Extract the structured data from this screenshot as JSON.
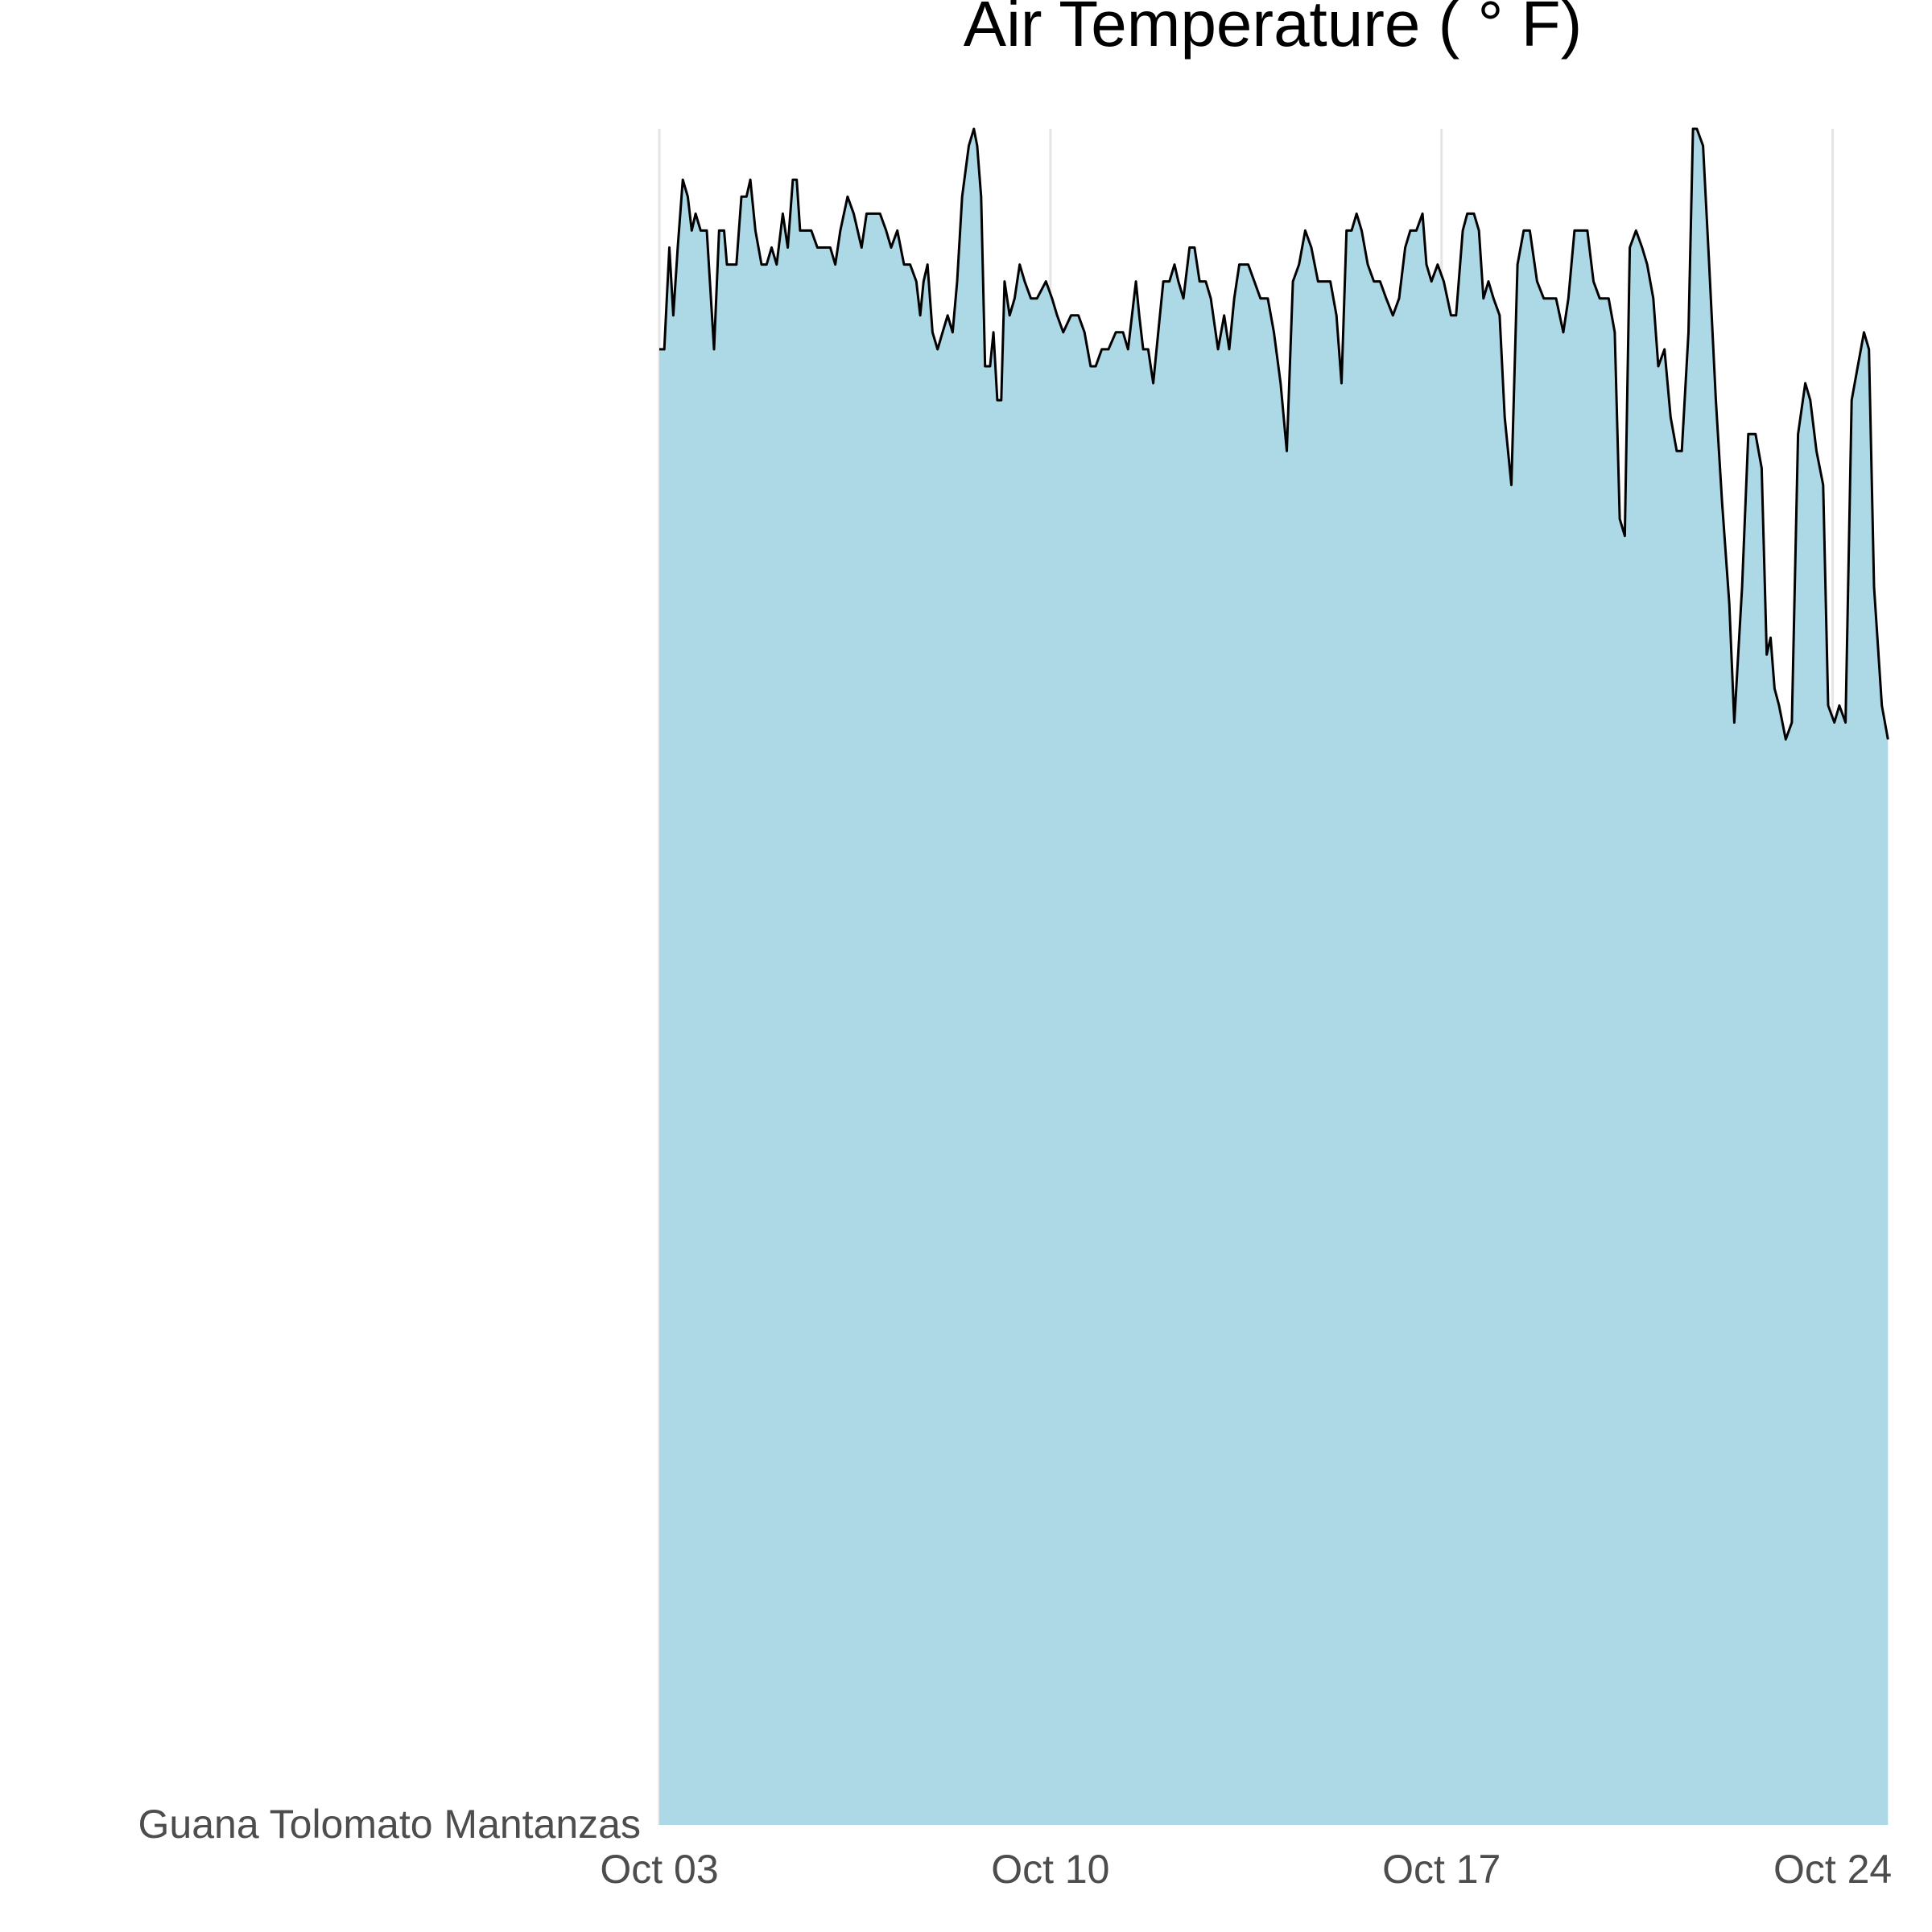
{
  "chart_data": {
    "type": "area",
    "title": "Air Temperature ( ° F)",
    "categories": [
      "Guana Tolomato Mantanzas"
    ],
    "color": "#add8e6",
    "line_color": "#000000",
    "grid": true,
    "xlim": [
      3,
      25
    ],
    "ylim": [
      0,
      1
    ],
    "xticks": [
      {
        "value": 3,
        "label": "Oct 03"
      },
      {
        "value": 10,
        "label": "Oct 10"
      },
      {
        "value": 17,
        "label": "Oct 17"
      },
      {
        "value": 24,
        "label": "Oct 24"
      }
    ],
    "x": [
      3.0,
      3.09,
      3.18,
      3.25,
      3.33,
      3.42,
      3.51,
      3.58,
      3.65,
      3.74,
      3.85,
      3.98,
      4.07,
      4.16,
      4.21,
      4.29,
      4.38,
      4.47,
      4.56,
      4.63,
      4.72,
      4.83,
      4.92,
      5.01,
      5.1,
      5.21,
      5.3,
      5.39,
      5.46,
      5.52,
      5.61,
      5.72,
      5.83,
      5.95,
      6.06,
      6.15,
      6.24,
      6.37,
      6.48,
      6.62,
      6.71,
      6.84,
      6.95,
      7.06,
      7.15,
      7.26,
      7.38,
      7.49,
      7.6,
      7.67,
      7.73,
      7.8,
      7.89,
      7.98,
      8.07,
      8.16,
      8.25,
      8.33,
      8.42,
      8.54,
      8.63,
      8.69,
      8.76,
      8.83,
      8.92,
      8.98,
      9.05,
      9.12,
      9.18,
      9.27,
      9.36,
      9.45,
      9.54,
      9.65,
      9.76,
      9.92,
      10.03,
      10.12,
      10.23,
      10.37,
      10.5,
      10.61,
      10.72,
      10.81,
      10.92,
      11.04,
      11.17,
      11.3,
      11.39,
      11.46,
      11.53,
      11.59,
      11.66,
      11.75,
      11.84,
      11.93,
      12.02,
      12.13,
      12.22,
      12.29,
      12.38,
      12.49,
      12.58,
      12.67,
      12.78,
      12.87,
      13.0,
      13.11,
      13.2,
      13.29,
      13.38,
      13.47,
      13.54,
      13.65,
      13.76,
      13.89,
      14.0,
      14.12,
      14.23,
      14.34,
      14.45,
      14.56,
      14.67,
      14.79,
      14.9,
      15.01,
      15.12,
      15.21,
      15.3,
      15.39,
      15.48,
      15.57,
      15.68,
      15.79,
      15.9,
      16.01,
      16.13,
      16.24,
      16.35,
      16.44,
      16.55,
      16.66,
      16.73,
      16.82,
      16.93,
      17.04,
      17.17,
      17.26,
      17.38,
      17.46,
      17.58,
      17.67,
      17.75,
      17.84,
      17.93,
      18.04,
      18.13,
      18.25,
      18.36,
      18.47,
      18.58,
      18.71,
      18.83,
      18.94,
      19.05,
      19.18,
      19.27,
      19.38,
      19.47,
      19.61,
      19.72,
      19.83,
      19.99,
      20.1,
      20.19,
      20.28,
      20.37,
      20.48,
      20.59,
      20.68,
      20.79,
      20.88,
      20.99,
      21.1,
      21.21,
      21.3,
      21.42,
      21.5,
      21.57,
      21.68,
      21.79,
      21.91,
      22.02,
      22.15,
      22.24,
      22.38,
      22.49,
      22.62,
      22.73,
      22.82,
      22.89,
      22.96,
      23.04,
      23.16,
      23.27,
      23.38,
      23.51,
      23.6,
      23.71,
      23.83,
      23.92,
      24.03,
      24.12,
      24.23,
      24.34,
      24.45,
      24.56,
      24.65,
      24.74,
      24.88,
      24.99
    ],
    "values": [
      0.87,
      0.87,
      0.93,
      0.89,
      0.93,
      0.97,
      0.96,
      0.94,
      0.95,
      0.94,
      0.94,
      0.87,
      0.94,
      0.94,
      0.92,
      0.92,
      0.92,
      0.96,
      0.96,
      0.97,
      0.94,
      0.92,
      0.92,
      0.93,
      0.92,
      0.95,
      0.93,
      0.97,
      0.97,
      0.94,
      0.94,
      0.94,
      0.93,
      0.93,
      0.93,
      0.92,
      0.94,
      0.96,
      0.95,
      0.93,
      0.95,
      0.95,
      0.95,
      0.94,
      0.93,
      0.94,
      0.92,
      0.92,
      0.91,
      0.89,
      0.91,
      0.92,
      0.88,
      0.87,
      0.88,
      0.89,
      0.88,
      0.91,
      0.96,
      0.99,
      1.0,
      0.99,
      0.96,
      0.86,
      0.86,
      0.88,
      0.84,
      0.84,
      0.91,
      0.89,
      0.9,
      0.92,
      0.91,
      0.9,
      0.9,
      0.91,
      0.9,
      0.89,
      0.88,
      0.89,
      0.89,
      0.88,
      0.86,
      0.86,
      0.87,
      0.87,
      0.88,
      0.88,
      0.87,
      0.89,
      0.91,
      0.89,
      0.87,
      0.87,
      0.85,
      0.88,
      0.91,
      0.91,
      0.92,
      0.91,
      0.9,
      0.93,
      0.93,
      0.91,
      0.91,
      0.9,
      0.87,
      0.89,
      0.87,
      0.9,
      0.92,
      0.92,
      0.92,
      0.91,
      0.9,
      0.9,
      0.88,
      0.85,
      0.81,
      0.91,
      0.92,
      0.94,
      0.93,
      0.91,
      0.91,
      0.91,
      0.89,
      0.85,
      0.94,
      0.94,
      0.95,
      0.94,
      0.92,
      0.91,
      0.91,
      0.9,
      0.89,
      0.9,
      0.93,
      0.94,
      0.94,
      0.95,
      0.92,
      0.91,
      0.92,
      0.91,
      0.89,
      0.89,
      0.94,
      0.95,
      0.95,
      0.94,
      0.9,
      0.91,
      0.9,
      0.89,
      0.83,
      0.79,
      0.92,
      0.94,
      0.94,
      0.91,
      0.9,
      0.9,
      0.9,
      0.88,
      0.9,
      0.94,
      0.94,
      0.94,
      0.91,
      0.9,
      0.9,
      0.88,
      0.77,
      0.76,
      0.93,
      0.94,
      0.93,
      0.92,
      0.9,
      0.86,
      0.87,
      0.83,
      0.81,
      0.81,
      0.88,
      1.0,
      1.0,
      0.99,
      0.92,
      0.84,
      0.78,
      0.72,
      0.65,
      0.73,
      0.82,
      0.82,
      0.8,
      0.69,
      0.7,
      0.67,
      0.66,
      0.64,
      0.65,
      0.82,
      0.85,
      0.84,
      0.81,
      0.79,
      0.66,
      0.65,
      0.66,
      0.65,
      0.84,
      0.86,
      0.88,
      0.87,
      0.73,
      0.66,
      0.64
    ]
  }
}
